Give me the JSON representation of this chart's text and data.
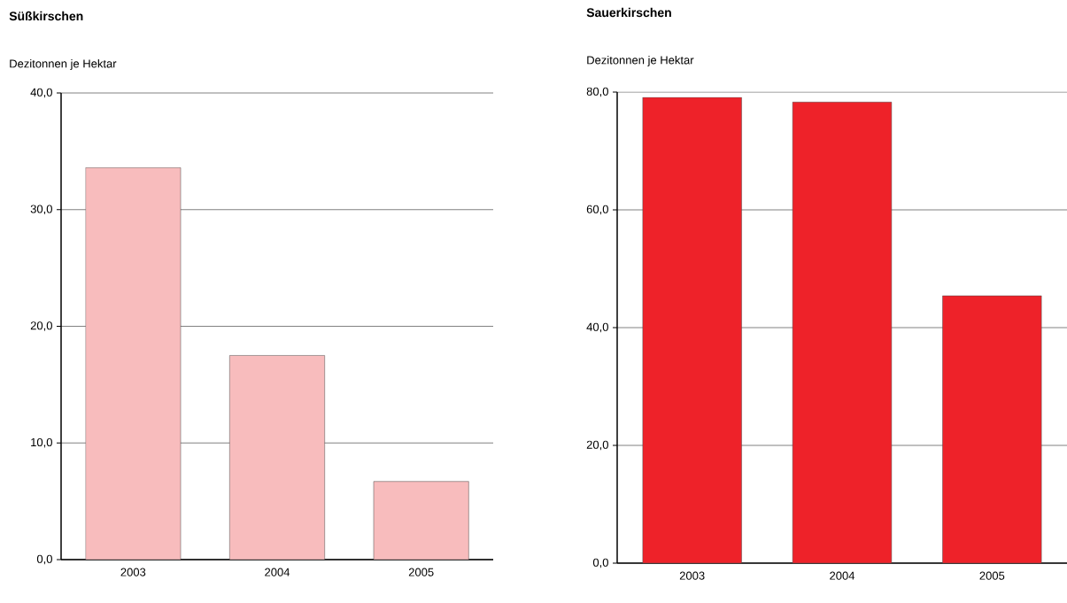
{
  "chart_data": [
    {
      "type": "bar",
      "title": "Süßkirschen",
      "ylabel": "Dezitonnen je Hektar",
      "categories": [
        "2003",
        "2004",
        "2005"
      ],
      "values": [
        33.6,
        17.5,
        6.7
      ],
      "color": "#f8bcbd",
      "ylim": [
        0,
        40
      ],
      "yticks": [
        {
          "value": 0,
          "label": "0,0"
        },
        {
          "value": 10,
          "label": "10,0"
        },
        {
          "value": 20,
          "label": "20,0"
        },
        {
          "value": 30,
          "label": "30,0"
        },
        {
          "value": 40,
          "label": "40,0"
        }
      ],
      "grid": "y"
    },
    {
      "type": "bar",
      "title": "Sauerkirschen",
      "ylabel": "Dezitonnen je Hektar",
      "categories": [
        "2003",
        "2004",
        "2005"
      ],
      "values": [
        79.1,
        78.3,
        45.4
      ],
      "color": "#ee2229",
      "ylim": [
        0,
        80
      ],
      "yticks": [
        {
          "value": 0,
          "label": "0,0"
        },
        {
          "value": 20,
          "label": "20,0"
        },
        {
          "value": 40,
          "label": "40,0"
        },
        {
          "value": 60,
          "label": "60,0"
        },
        {
          "value": 80,
          "label": "80,0"
        }
      ],
      "grid": "y"
    }
  ]
}
